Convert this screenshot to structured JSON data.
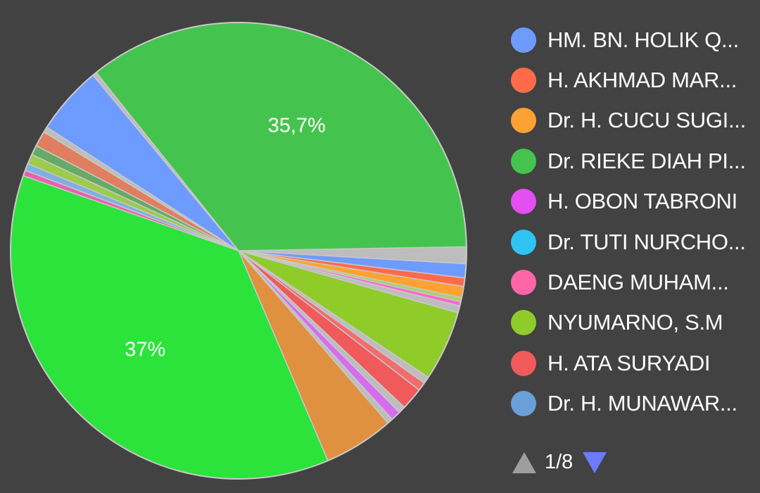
{
  "chart_data": {
    "type": "pie",
    "slices": [
      {
        "label": "",
        "value": 1.2,
        "color": "#bdbdbd"
      },
      {
        "label": "",
        "value": 1.0,
        "color": "#6e9bff"
      },
      {
        "label": "",
        "value": 0.6,
        "color": "#ff6b4a"
      },
      {
        "label": "",
        "value": 0.8,
        "color": "#ffa133"
      },
      {
        "label": "",
        "value": 0.3,
        "color": "#a5d36b"
      },
      {
        "label": "",
        "value": 0.3,
        "color": "#ff66cc"
      },
      {
        "label": "",
        "value": 0.5,
        "color": "#bdbdbd"
      },
      {
        "label": "",
        "value": 5.0,
        "color": "#8fcc2a"
      },
      {
        "label": "",
        "value": 0.5,
        "color": "#bdbdbd"
      },
      {
        "label": "",
        "value": 0.6,
        "color": "#f26d6d"
      },
      {
        "label": "",
        "value": 1.6,
        "color": "#f05a5a"
      },
      {
        "label": "",
        "value": 0.5,
        "color": "#bdbdbd"
      },
      {
        "label": "",
        "value": 0.7,
        "color": "#d76cf0"
      },
      {
        "label": "",
        "value": 0.4,
        "color": "#bdbdbd"
      },
      {
        "label": "",
        "value": 5.0,
        "color": "#df9140"
      },
      {
        "label": "",
        "value": 37.0,
        "color": "#2be33a"
      },
      {
        "label": "",
        "value": 0.4,
        "color": "#e960b0"
      },
      {
        "label": "",
        "value": 0.5,
        "color": "#7fb0e0"
      },
      {
        "label": "",
        "value": 0.7,
        "color": "#9ccc4a"
      },
      {
        "label": "",
        "value": 0.7,
        "color": "#66aa66"
      },
      {
        "label": "",
        "value": 1.1,
        "color": "#df7f5f"
      },
      {
        "label": "",
        "value": 0.4,
        "color": "#bdbdbd"
      },
      {
        "label": "",
        "value": 4.9,
        "color": "#6e9bff"
      },
      {
        "label": "",
        "value": 0.3,
        "color": "#bdbdbd"
      },
      {
        "label": "",
        "value": 35.7,
        "color": "#44c44e"
      }
    ],
    "data_labels": [
      {
        "text": "37%",
        "slice": 15
      },
      {
        "text": "35,7%",
        "slice": 24
      }
    ],
    "start_angle_deg": -1,
    "legend_position": "right",
    "legend": [
      {
        "label": "HM. BN. HOLIK Q...",
        "color": "#6e9bff"
      },
      {
        "label": "H. AKHMAD MAR...",
        "color": "#ff6b4a"
      },
      {
        "label": "Dr. H. CUCU SUGI...",
        "color": "#ffa133"
      },
      {
        "label": "Dr. RIEKE DIAH PI...",
        "color": "#44c44e"
      },
      {
        "label": "H. OBON TABRONI",
        "color": "#e34ff0"
      },
      {
        "label": "Dr. TUTI NURCHO...",
        "color": "#2ec3f0"
      },
      {
        "label": "DAENG MUHAM...",
        "color": "#ff66a8"
      },
      {
        "label": "NYUMARNO, S.M",
        "color": "#8fcc2a"
      },
      {
        "label": "H. ATA SURYADI",
        "color": "#f05a5a"
      },
      {
        "label": "Dr. H. MUNAWAR...",
        "color": "#6b9fd8"
      }
    ],
    "pager": {
      "text": "1/8"
    }
  }
}
